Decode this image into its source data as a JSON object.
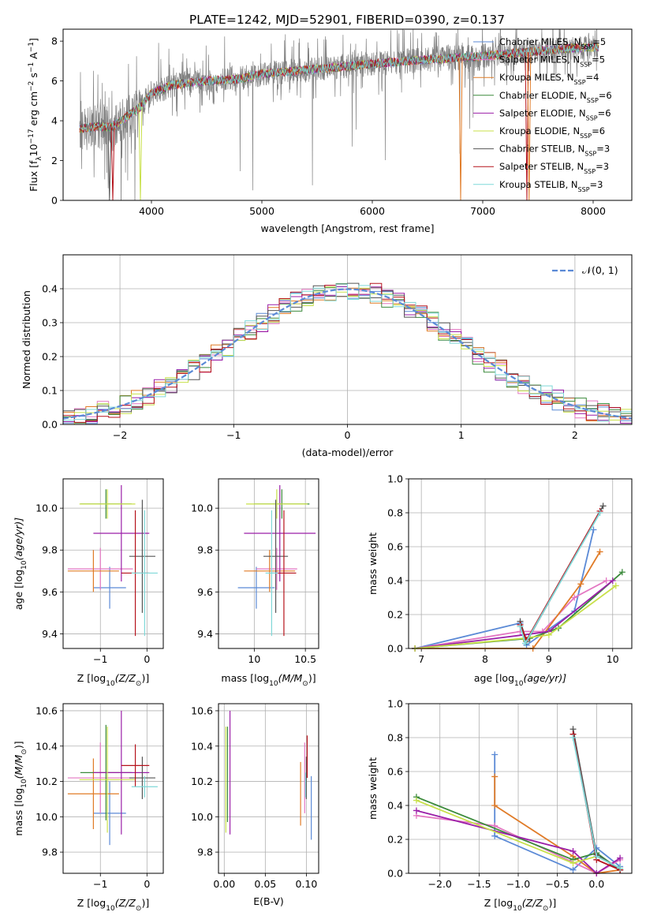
{
  "figure": {
    "title": "PLATE=1242, MJD=52901, FIBERID=0390, z=0.137"
  },
  "series_colors": {
    "chabrier_miles": "#5b8ad6",
    "salpeter_miles": "#e377c2",
    "kroupa_miles": "#e07b27",
    "chabrier_elodie": "#3b8a3b",
    "salpeter_elodie": "#9b1fa8",
    "kroupa_elodie": "#c8e04a",
    "chabrier_stelib": "#555555",
    "salpeter_stelib": "#b5121b",
    "kroupa_stelib": "#7fd8d8",
    "data": "#808080",
    "normal": "#5b8ad6"
  },
  "chart_data": [
    {
      "id": "spectrum",
      "type": "line",
      "title": "PLATE=1242, MJD=52901, FIBERID=0390, z=0.137",
      "xlabel": "wavelength [Angstrom, rest frame]",
      "ylabel_parts": [
        "Flux [f",
        "λ",
        "10",
        "−17",
        " erg cm",
        "−2",
        " s",
        "−1",
        " A",
        "−1",
        "]"
      ],
      "xlim": [
        3200,
        8350
      ],
      "ylim": [
        0,
        8.6
      ],
      "xticks": [
        4000,
        5000,
        6000,
        7000,
        8000
      ],
      "yticks": [
        0,
        2,
        4,
        6,
        8
      ],
      "legend_position": "upper-right",
      "legend": [
        {
          "key": "chabrier_miles",
          "label": "Chabrier MILES, N",
          "sub": "SSP",
          "suffix": "=5"
        },
        {
          "key": "salpeter_miles",
          "label": "Salpeter MILES, N",
          "sub": "SSP",
          "suffix": "=5"
        },
        {
          "key": "kroupa_miles",
          "label": "Kroupa MILES, N",
          "sub": "SSP",
          "suffix": "=4"
        },
        {
          "key": "chabrier_elodie",
          "label": "Chabrier ELODIE, N",
          "sub": "SSP",
          "suffix": "=6"
        },
        {
          "key": "salpeter_elodie",
          "label": "Salpeter ELODIE, N",
          "sub": "SSP",
          "suffix": "=6"
        },
        {
          "key": "kroupa_elodie",
          "label": "Kroupa ELODIE, N",
          "sub": "SSP",
          "suffix": "=6"
        },
        {
          "key": "chabrier_stelib",
          "label": "Chabrier STELIB, N",
          "sub": "SSP",
          "suffix": "=3"
        },
        {
          "key": "salpeter_stelib",
          "label": "Salpeter STELIB, N",
          "sub": "SSP",
          "suffix": "=3"
        },
        {
          "key": "kroupa_stelib",
          "label": "Kroupa STELIB, N",
          "sub": "SSP",
          "suffix": "=3"
        }
      ],
      "continuum": [
        [
          3350,
          3.6
        ],
        [
          3500,
          3.7
        ],
        [
          3650,
          3.7
        ],
        [
          3750,
          4.1
        ],
        [
          3900,
          4.7
        ],
        [
          4000,
          5.4
        ],
        [
          4200,
          5.8
        ],
        [
          4500,
          6.0
        ],
        [
          4800,
          6.1
        ],
        [
          5000,
          6.35
        ],
        [
          5300,
          6.5
        ],
        [
          5600,
          6.65
        ],
        [
          6000,
          6.85
        ],
        [
          6300,
          7.0
        ],
        [
          6600,
          7.1
        ],
        [
          7000,
          7.25
        ],
        [
          7400,
          7.45
        ],
        [
          7800,
          7.65
        ],
        [
          8050,
          7.7
        ]
      ],
      "model_dips": [
        {
          "key": "chabrier_stelib",
          "x": 3620
        },
        {
          "key": "salpeter_stelib",
          "x": 3650
        },
        {
          "key": "kroupa_elodie",
          "x": 3900
        },
        {
          "key": "kroupa_miles",
          "x": 6800
        },
        {
          "key": "salpeter_stelib",
          "x": 7400
        },
        {
          "key": "kroupa_miles",
          "x": 7420
        }
      ]
    },
    {
      "id": "residuals",
      "type": "histogram",
      "xlabel": "(data-model)/error",
      "ylabel": "Normed distribution",
      "xlim": [
        -2.5,
        2.5
      ],
      "ylim": [
        0,
        0.5
      ],
      "xticks": [
        -2,
        -1,
        0,
        1,
        2
      ],
      "yticks": [
        0.0,
        0.1,
        0.2,
        0.3,
        0.4
      ],
      "grid": true,
      "legend_position": "upper-right",
      "legend": [
        {
          "key": "normal",
          "label": "𝒩(0, 1)",
          "style": "dashed"
        }
      ],
      "bin_width": 0.1,
      "normal": {
        "mu": 0,
        "sigma": 1
      }
    },
    {
      "id": "age_vs_Z",
      "type": "errorbar",
      "xlabel_parts": [
        "Z [log",
        "10",
        "(Z/Z",
        "⊙",
        ")]"
      ],
      "ylabel_parts": [
        "age  [log",
        "10",
        "(age/yr)]"
      ],
      "xlim": [
        -1.8,
        0.35
      ],
      "ylim": [
        9.33,
        10.14
      ],
      "xticks": [
        -1,
        0
      ],
      "yticks": [
        9.4,
        9.6,
        9.8,
        10.0
      ],
      "grid": true,
      "points": [
        {
          "key": "chabrier_miles",
          "x": -0.8,
          "xerr": 0.35,
          "y": 9.62,
          "yerr": 0.1
        },
        {
          "key": "salpeter_miles",
          "x": -1.0,
          "xerr": 0.7,
          "y": 9.71,
          "yerr": 0.1
        },
        {
          "key": "kroupa_miles",
          "x": -1.15,
          "xerr": 0.55,
          "y": 9.7,
          "yerr": 0.1
        },
        {
          "key": "chabrier_elodie",
          "x": -0.88,
          "xerr": 0.55,
          "y": 10.02,
          "yerr": 0.07
        },
        {
          "key": "salpeter_elodie",
          "x": -0.55,
          "xerr": 0.6,
          "y": 9.88,
          "yerr": 0.23
        },
        {
          "key": "kroupa_elodie",
          "x": -0.85,
          "xerr": 0.6,
          "y": 10.02,
          "yerr": 0.07
        },
        {
          "key": "chabrier_stelib",
          "x": -0.1,
          "xerr": 0.28,
          "y": 9.77,
          "yerr": 0.27
        },
        {
          "key": "salpeter_stelib",
          "x": -0.25,
          "xerr": 0.3,
          "y": 9.69,
          "yerr": 0.3
        },
        {
          "key": "kroupa_stelib",
          "x": -0.05,
          "xerr": 0.28,
          "y": 9.69,
          "yerr": 0.3
        }
      ]
    },
    {
      "id": "age_vs_mass",
      "type": "errorbar",
      "xlabel_parts": [
        "mass [log",
        "10",
        "(M/M",
        "⊙",
        ")]"
      ],
      "ylabel_parts": [],
      "xlim": [
        9.65,
        10.63
      ],
      "ylim": [
        9.33,
        10.14
      ],
      "xticks": [
        10.0,
        10.5
      ],
      "yticks": [
        9.4,
        9.6,
        9.8,
        10.0
      ],
      "grid": true,
      "points": [
        {
          "key": "chabrier_miles",
          "x": 10.02,
          "xerr": 0.18,
          "y": 9.62,
          "yerr": 0.1
        },
        {
          "key": "salpeter_miles",
          "x": 10.22,
          "xerr": 0.2,
          "y": 9.71,
          "yerr": 0.1
        },
        {
          "key": "kroupa_miles",
          "x": 10.15,
          "xerr": 0.25,
          "y": 9.7,
          "yerr": 0.1
        },
        {
          "key": "chabrier_elodie",
          "x": 10.27,
          "xerr": 0.27,
          "y": 10.02,
          "yerr": 0.07
        },
        {
          "key": "salpeter_elodie",
          "x": 10.25,
          "xerr": 0.35,
          "y": 9.88,
          "yerr": 0.23
        },
        {
          "key": "kroupa_elodie",
          "x": 10.22,
          "xerr": 0.3,
          "y": 10.02,
          "yerr": 0.07
        },
        {
          "key": "chabrier_stelib",
          "x": 10.21,
          "xerr": 0.12,
          "y": 9.77,
          "yerr": 0.27
        },
        {
          "key": "salpeter_stelib",
          "x": 10.29,
          "xerr": 0.12,
          "y": 9.69,
          "yerr": 0.3
        },
        {
          "key": "kroupa_stelib",
          "x": 10.17,
          "xerr": 0.06,
          "y": 9.69,
          "yerr": 0.3
        }
      ]
    },
    {
      "id": "weight_vs_age",
      "type": "line",
      "xlabel_parts": [
        "age  [log",
        "10",
        "(age/yr)]"
      ],
      "ylabel": "mass weight",
      "xlim": [
        6.8,
        10.3
      ],
      "ylim": [
        0,
        1
      ],
      "xticks": [
        7,
        8,
        9,
        10
      ],
      "yticks": [
        0.0,
        0.2,
        0.4,
        0.6,
        0.8,
        1.0
      ],
      "grid": true,
      "series": [
        {
          "key": "chabrier_miles",
          "points": [
            [
              6.9,
              0.0
            ],
            [
              8.55,
              0.15
            ],
            [
              8.65,
              0.02
            ],
            [
              9.4,
              0.22
            ],
            [
              9.7,
              0.7
            ]
          ]
        },
        {
          "key": "salpeter_miles",
          "points": [
            [
              6.9,
              0.0
            ],
            [
              8.55,
              0.1
            ],
            [
              8.9,
              0.1
            ],
            [
              9.4,
              0.3
            ],
            [
              9.9,
              0.4
            ]
          ]
        },
        {
          "key": "kroupa_miles",
          "points": [
            [
              6.9,
              0.0
            ],
            [
              8.75,
              0.0
            ],
            [
              9.5,
              0.38
            ],
            [
              9.8,
              0.57
            ]
          ]
        },
        {
          "key": "chabrier_elodie",
          "points": [
            [
              6.9,
              0.0
            ],
            [
              8.7,
              0.06
            ],
            [
              9.15,
              0.12
            ],
            [
              10.15,
              0.45
            ]
          ]
        },
        {
          "key": "salpeter_elodie",
          "points": [
            [
              6.9,
              0.0
            ],
            [
              8.6,
              0.08
            ],
            [
              9.0,
              0.1
            ],
            [
              10.0,
              0.4
            ]
          ]
        },
        {
          "key": "kroupa_elodie",
          "points": [
            [
              6.9,
              0.0
            ],
            [
              8.6,
              0.06
            ],
            [
              9.0,
              0.08
            ],
            [
              10.05,
              0.37
            ]
          ]
        },
        {
          "key": "chabrier_stelib",
          "points": [
            [
              8.55,
              0.16
            ],
            [
              8.65,
              0.04
            ],
            [
              9.85,
              0.84
            ]
          ]
        },
        {
          "key": "salpeter_stelib",
          "points": [
            [
              8.55,
              0.14
            ],
            [
              8.65,
              0.05
            ],
            [
              9.8,
              0.81
            ]
          ]
        },
        {
          "key": "kroupa_stelib",
          "points": [
            [
              8.55,
              0.13
            ],
            [
              8.63,
              0.03
            ],
            [
              9.8,
              0.8
            ]
          ]
        }
      ]
    },
    {
      "id": "mass_vs_Z",
      "type": "errorbar",
      "xlabel_parts": [
        "Z [log",
        "10",
        "(Z/Z",
        "⊙",
        ")]"
      ],
      "ylabel_parts": [
        "mass [log",
        "10",
        "(M/M",
        "⊙",
        ")]"
      ],
      "xlim": [
        -1.8,
        0.35
      ],
      "ylim": [
        9.68,
        10.64
      ],
      "xticks": [
        -1,
        0
      ],
      "yticks": [
        9.8,
        10.0,
        10.2,
        10.4,
        10.6
      ],
      "grid": true,
      "points": [
        {
          "key": "chabrier_miles",
          "x": -0.8,
          "xerr": 0.35,
          "y": 10.02,
          "yerr": 0.18
        },
        {
          "key": "salpeter_miles",
          "x": -1.0,
          "xerr": 0.7,
          "y": 10.22,
          "yerr": 0.2
        },
        {
          "key": "kroupa_miles",
          "x": -1.15,
          "xerr": 0.55,
          "y": 10.13,
          "yerr": 0.2
        },
        {
          "key": "chabrier_elodie",
          "x": -0.88,
          "xerr": 0.55,
          "y": 10.25,
          "yerr": 0.27
        },
        {
          "key": "salpeter_elodie",
          "x": -0.55,
          "xerr": 0.6,
          "y": 10.25,
          "yerr": 0.35
        },
        {
          "key": "kroupa_elodie",
          "x": -0.85,
          "xerr": 0.6,
          "y": 10.21,
          "yerr": 0.3
        },
        {
          "key": "chabrier_stelib",
          "x": -0.1,
          "xerr": 0.28,
          "y": 10.22,
          "yerr": 0.12
        },
        {
          "key": "salpeter_stelib",
          "x": -0.25,
          "xerr": 0.3,
          "y": 10.29,
          "yerr": 0.12
        },
        {
          "key": "kroupa_stelib",
          "x": -0.05,
          "xerr": 0.28,
          "y": 10.17,
          "yerr": 0.06
        }
      ]
    },
    {
      "id": "mass_vs_ebv",
      "type": "errorbar",
      "xlabel": "E(B-V)",
      "ylabel_parts": [],
      "xlim": [
        -0.007,
        0.115
      ],
      "ylim": [
        9.68,
        10.64
      ],
      "xticks": [
        0.0,
        0.05,
        0.1
      ],
      "xtick_labels": [
        "0.00",
        "0.05",
        "0.10"
      ],
      "yticks": [
        9.8,
        10.0,
        10.2,
        10.4,
        10.6
      ],
      "grid": true,
      "points": [
        {
          "key": "chabrier_miles",
          "x": 0.106,
          "y": 10.05,
          "yerr": 0.18
        },
        {
          "key": "salpeter_miles",
          "x": 0.098,
          "y": 10.22,
          "yerr": 0.2
        },
        {
          "key": "kroupa_miles",
          "x": 0.093,
          "y": 10.13,
          "yerr": 0.18
        },
        {
          "key": "chabrier_elodie",
          "x": 0.004,
          "y": 10.24,
          "yerr": 0.27
        },
        {
          "key": "salpeter_elodie",
          "x": 0.007,
          "y": 10.25,
          "yerr": 0.35
        },
        {
          "key": "kroupa_elodie",
          "x": 0.002,
          "y": 10.21,
          "yerr": 0.3
        },
        {
          "key": "chabrier_stelib",
          "x": 0.1,
          "y": 10.22,
          "yerr": 0.12
        },
        {
          "key": "salpeter_stelib",
          "x": 0.101,
          "y": 10.34,
          "yerr": 0.12
        },
        {
          "key": "kroupa_stelib",
          "x": 0.099,
          "y": 10.18,
          "yerr": 0.07
        }
      ]
    },
    {
      "id": "weight_vs_Z",
      "type": "line",
      "xlabel_parts": [
        "Z [log",
        "10",
        "(Z/Z",
        "⊙",
        ")]"
      ],
      "ylabel": "mass weight",
      "xlim": [
        -2.4,
        0.45
      ],
      "ylim": [
        0,
        1
      ],
      "xticks": [
        -2.0,
        -1.5,
        -1.0,
        -0.5,
        0.0
      ],
      "xtick_labels": [
        "−2.0",
        "−1.5",
        "−1.0",
        "−0.5",
        "0.0"
      ],
      "yticks": [
        0.0,
        0.2,
        0.4,
        0.6,
        0.8,
        1.0
      ],
      "grid": true,
      "series": [
        {
          "key": "chabrier_miles",
          "points": [
            [
              -1.3,
              0.7
            ],
            [
              -1.3,
              0.22
            ],
            [
              -0.3,
              0.02
            ],
            [
              0.0,
              0.15
            ],
            [
              0.3,
              0.04
            ]
          ]
        },
        {
          "key": "salpeter_miles",
          "points": [
            [
              -2.3,
              0.34
            ],
            [
              -1.3,
              0.28
            ],
            [
              0.0,
              0.0
            ],
            [
              0.3,
              0.08
            ]
          ]
        },
        {
          "key": "kroupa_miles",
          "points": [
            [
              -1.3,
              0.57
            ],
            [
              -1.3,
              0.4
            ],
            [
              -0.3,
              0.1
            ],
            [
              0.0,
              0.0
            ],
            [
              0.3,
              0.02
            ]
          ]
        },
        {
          "key": "chabrier_elodie",
          "points": [
            [
              -2.3,
              0.45
            ],
            [
              -0.3,
              0.08
            ],
            [
              0.0,
              0.12
            ],
            [
              0.3,
              0.02
            ]
          ]
        },
        {
          "key": "salpeter_elodie",
          "points": [
            [
              -2.3,
              0.37
            ],
            [
              -0.3,
              0.13
            ],
            [
              0.0,
              0.0
            ],
            [
              0.3,
              0.09
            ]
          ]
        },
        {
          "key": "kroupa_elodie",
          "points": [
            [
              -2.3,
              0.43
            ],
            [
              -0.3,
              0.06
            ],
            [
              0.0,
              0.1
            ],
            [
              0.3,
              0.03
            ]
          ]
        },
        {
          "key": "chabrier_stelib",
          "points": [
            [
              -0.3,
              0.85
            ],
            [
              0.0,
              0.11
            ],
            [
              0.3,
              0.02
            ]
          ]
        },
        {
          "key": "salpeter_stelib",
          "points": [
            [
              -0.3,
              0.82
            ],
            [
              0.0,
              0.08
            ],
            [
              0.3,
              0.02
            ]
          ]
        },
        {
          "key": "kroupa_stelib",
          "points": [
            [
              -0.3,
              0.8
            ],
            [
              0.0,
              0.1
            ],
            [
              0.3,
              0.03
            ]
          ]
        }
      ]
    }
  ]
}
